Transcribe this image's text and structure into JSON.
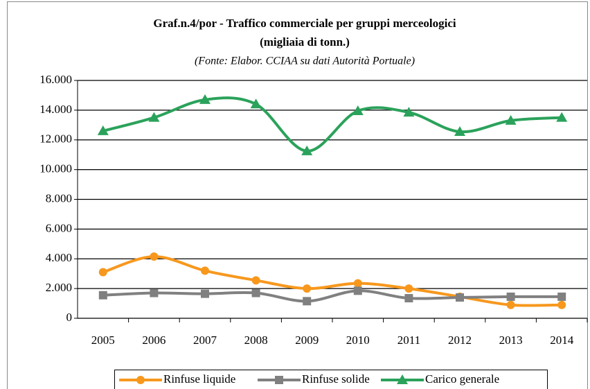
{
  "chart_data": {
    "type": "line",
    "title": "Graf.n.4/por - Traffico commerciale per gruppi merceologici",
    "title_line2": "(migliaia di tonn.)",
    "subtitle": "(Fonte: Elabor. CCIAA su dati Autorità Portuale)",
    "categories": [
      "2005",
      "2006",
      "2007",
      "2008",
      "2009",
      "2010",
      "2011",
      "2012",
      "2013",
      "2014"
    ],
    "series": [
      {
        "name": "Rinfuse liquide",
        "color": "#f7981d",
        "marker": "circle",
        "values": [
          3100,
          4150,
          3200,
          2550,
          2000,
          2350,
          2000,
          1450,
          900,
          900
        ]
      },
      {
        "name": "Rinfuse solide",
        "color": "#808080",
        "marker": "square",
        "values": [
          1550,
          1700,
          1650,
          1700,
          1150,
          1850,
          1350,
          1400,
          1450,
          1450
        ]
      },
      {
        "name": "Carico generale",
        "color": "#2ba25b",
        "marker": "triangle",
        "values": [
          12600,
          13500,
          14700,
          14400,
          11250,
          13950,
          13850,
          12550,
          13300,
          13500
        ]
      }
    ],
    "ylim": [
      0,
      16000
    ],
    "yticks": [
      0,
      {
        "value": 2000,
        "label": "2.000"
      },
      {
        "value": 4000,
        "label": "4.000"
      },
      {
        "value": 6000,
        "label": "6.000"
      },
      {
        "value": 8000,
        "label": "8.000"
      },
      {
        "value": 10000,
        "label": "10.000"
      },
      {
        "value": 12000,
        "label": "12.000"
      },
      {
        "value": 14000,
        "label": "14.000"
      },
      {
        "value": 16000,
        "label": "16.000"
      }
    ],
    "grid": true,
    "legend": "bottom",
    "smooth": true
  }
}
